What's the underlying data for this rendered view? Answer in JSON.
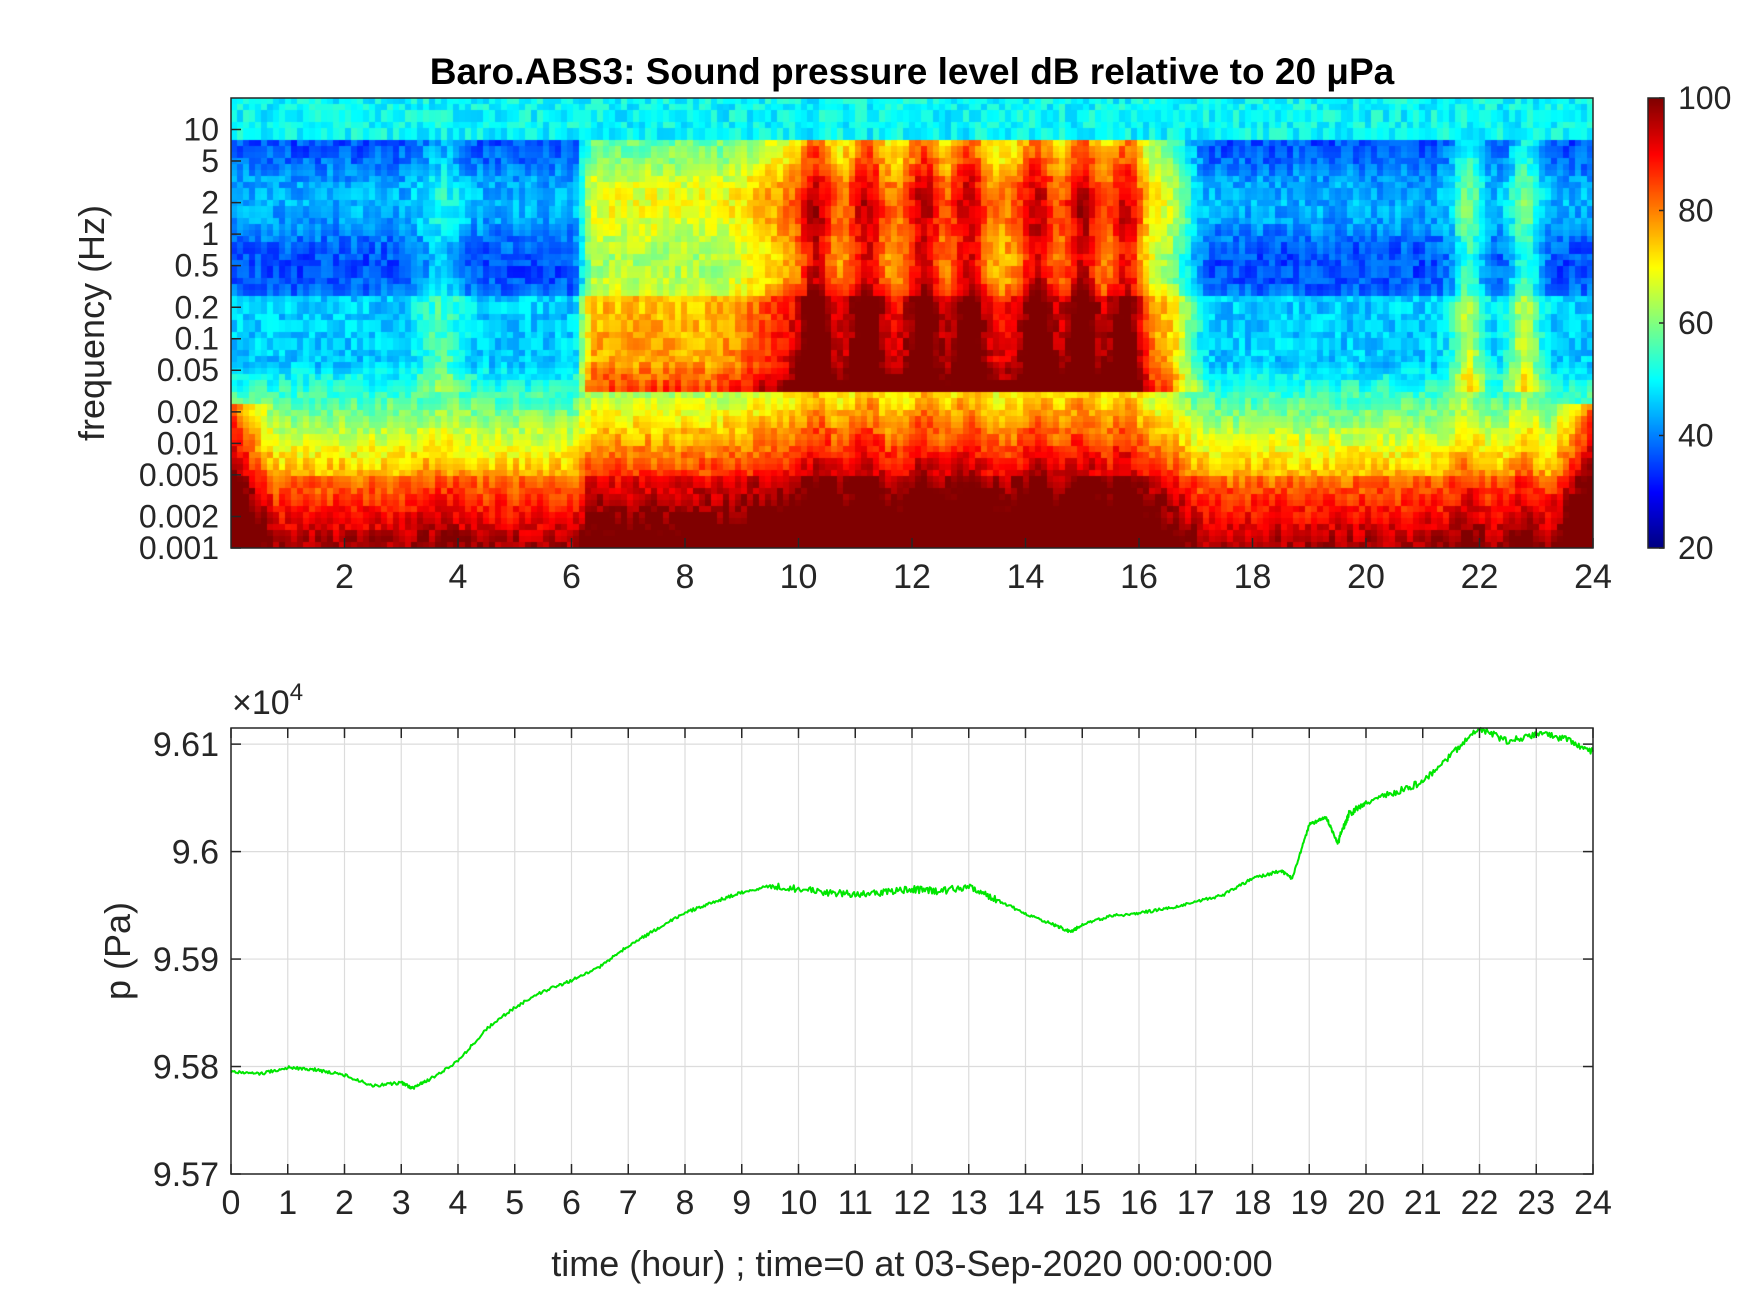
{
  "chart_data": [
    {
      "type": "heatmap",
      "title": "Baro.ABS3: Sound pressure level dB relative to 20 μPa",
      "xlabel": "",
      "ylabel": "frequency (Hz)",
      "x_range": [
        0,
        24
      ],
      "x_ticks": [
        "2",
        "4",
        "6",
        "8",
        "10",
        "12",
        "14",
        "16",
        "18",
        "20",
        "22",
        "24"
      ],
      "y_scale": "log",
      "y_range": [
        0.001,
        20
      ],
      "y_ticks": [
        "0.001",
        "0.002",
        "0.005",
        "0.01",
        "0.02",
        "0.05",
        "0.1",
        "0.2",
        "0.5",
        "1",
        "2",
        "5",
        "10"
      ],
      "colorbar": {
        "range": [
          20,
          100
        ],
        "ticks": [
          "20",
          "40",
          "60",
          "80",
          "100"
        ],
        "colormap": "jet"
      },
      "activity_bursts_hour": [
        10.3,
        11.2,
        12.2,
        13.0,
        14.2,
        15.0,
        15.8,
        21.8,
        22.8
      ]
    },
    {
      "type": "line",
      "title": "",
      "xlabel": "time (hour) ; time=0 at 03-Sep-2020 00:00:00",
      "ylabel": "p (Pa)",
      "exponent_label": "×10",
      "exponent_power": "4",
      "x_range": [
        0,
        24
      ],
      "x_ticks": [
        "0",
        "1",
        "2",
        "3",
        "4",
        "5",
        "6",
        "7",
        "8",
        "9",
        "10",
        "11",
        "12",
        "13",
        "14",
        "15",
        "16",
        "17",
        "18",
        "19",
        "20",
        "21",
        "22",
        "23",
        "24"
      ],
      "ylim": [
        95700,
        96115
      ],
      "y_ticks": [
        "9.57",
        "9.58",
        "9.59",
        "9.6",
        "9.61"
      ],
      "grid": true,
      "color": "#00e600",
      "series": [
        {
          "x": [
            0,
            0.5,
            1,
            1.5,
            2,
            2.5,
            3,
            3.2,
            3.5,
            4,
            4.5,
            5,
            5.5,
            6,
            6.5,
            7,
            7.5,
            8,
            8.5,
            9,
            9.5,
            10,
            10.5,
            11,
            11.5,
            12,
            12.5,
            13,
            13.5,
            14,
            14.5,
            14.8,
            15,
            15.5,
            16,
            16.5,
            17,
            17.5,
            18,
            18.5,
            18.7,
            19,
            19.3,
            19.5,
            19.7,
            20,
            20.5,
            21,
            21.5,
            22,
            22.5,
            23,
            23.5,
            24
          ],
          "y": [
            95795,
            95793,
            95799,
            95797,
            95792,
            95782,
            95785,
            95780,
            95788,
            95805,
            95835,
            95855,
            95870,
            95880,
            95893,
            95912,
            95928,
            95943,
            95953,
            95962,
            95968,
            95965,
            95962,
            95960,
            95962,
            95965,
            95963,
            95968,
            95955,
            95942,
            95932,
            95925,
            95932,
            95940,
            95943,
            95947,
            95953,
            95960,
            95975,
            95982,
            95975,
            96025,
            96032,
            96008,
            96035,
            96045,
            96055,
            96065,
            96090,
            96115,
            96102,
            96110,
            96105,
            96093
          ]
        }
      ]
    }
  ]
}
